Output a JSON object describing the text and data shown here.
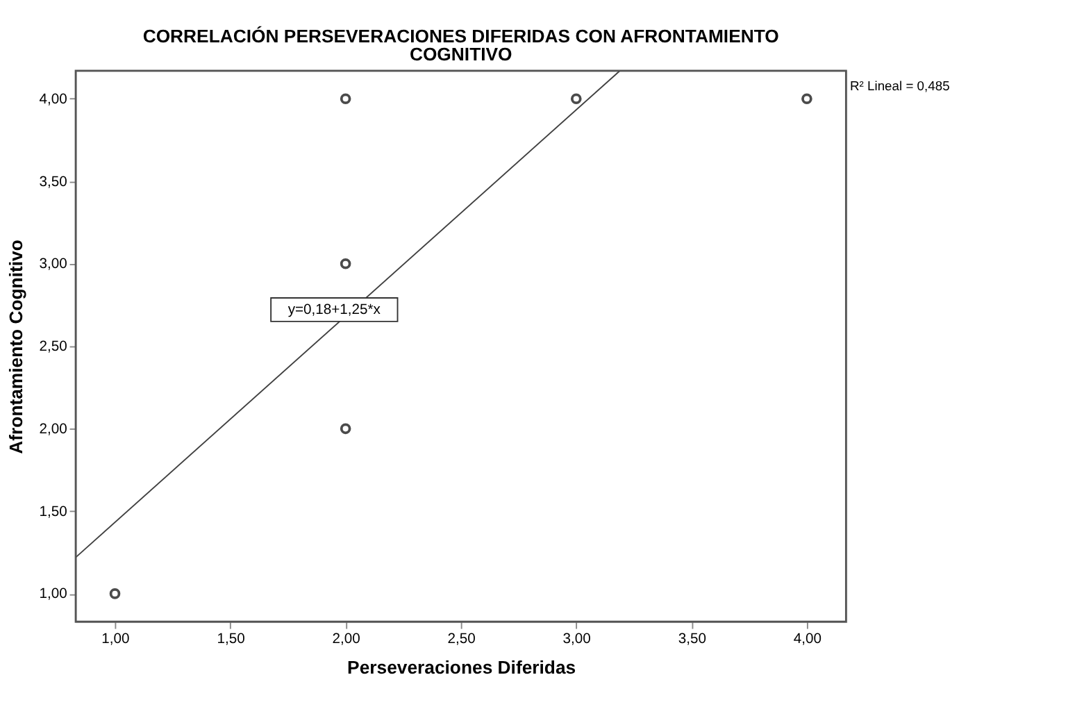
{
  "chart_data": {
    "type": "scatter",
    "title": "CORRELACIÓN PERSEVERACIONES DIFERIDAS CON AFRONTAMIENTO COGNITIVO",
    "xlabel": "Perseveraciones Diferidas",
    "ylabel": "Afrontamiento Cognitivo",
    "series": [
      {
        "color": "#000000",
        "x": [
          1,
          2,
          2,
          2,
          3,
          4
        ],
        "values": [
          1,
          4,
          3,
          2,
          4,
          4
        ],
        "marker": "circle"
      },
      {
        "type": "line",
        "color": "#404040",
        "x": [
          0.83,
          3.19
        ],
        "values": [
          1.22,
          4.17
        ]
      }
    ],
    "annotations": [
      "y=0,18+1,25*x",
      "R² Lineal = 0,485"
    ],
    "xlim": [
      0.83,
      4.17
    ],
    "ylim": [
      0.83,
      4.17
    ],
    "xticks": [
      {
        "value": 1,
        "label": "1,00"
      },
      {
        "value": 1.5,
        "label": "1,50"
      },
      {
        "value": 2,
        "label": "2,00"
      },
      {
        "value": 2.5,
        "label": "2,50"
      },
      {
        "value": 3,
        "label": "3,00"
      },
      {
        "value": 3.5,
        "label": "3,50"
      },
      {
        "value": 4,
        "label": "4,00"
      }
    ],
    "yticks": [
      {
        "value": 1,
        "label": "1,00"
      },
      {
        "value": 1.5,
        "label": "1,50"
      },
      {
        "value": 2,
        "label": "2,00"
      },
      {
        "value": 2.5,
        "label": "2,50"
      },
      {
        "value": 3,
        "label": "3,00"
      },
      {
        "value": 3.5,
        "label": "3,50"
      },
      {
        "value": 4,
        "label": "4,00"
      }
    ],
    "grid": false
  }
}
